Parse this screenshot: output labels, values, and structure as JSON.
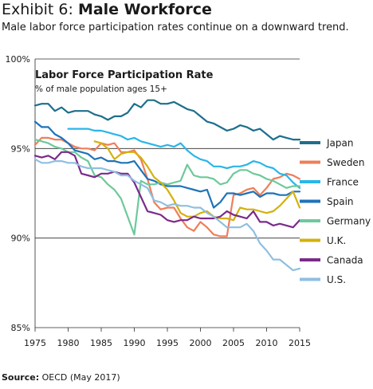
{
  "header": {
    "exhibit_label": "Exhibit 6:",
    "exhibit_title": "Male Workforce",
    "subtitle": "Male labor force participation rates continue on a downward trend."
  },
  "footer": {
    "source_label": "Source:",
    "source_text": "OECD (May 2017)"
  },
  "chart_data": {
    "type": "line",
    "title": "Labor Force Participation Rate",
    "subtitle": "% of male population ages 15+",
    "xlim": [
      1975,
      2015
    ],
    "ylim": [
      85,
      100
    ],
    "x_ticks": [
      1975,
      1980,
      1985,
      1990,
      1995,
      2000,
      2005,
      2010,
      2015
    ],
    "y_ticks": [
      {
        "value": 85,
        "label": "85%"
      },
      {
        "value": 90,
        "label": "90%"
      },
      {
        "value": 95,
        "label": "95%"
      },
      {
        "value": 100,
        "label": "100%"
      }
    ],
    "grid": "horizontal",
    "legend_position": "right",
    "series": [
      {
        "name": "Japan",
        "color": "#1d6f8c",
        "x": [
          1975,
          1976,
          1977,
          1978,
          1979,
          1980,
          1981,
          1982,
          1983,
          1984,
          1985,
          1986,
          1987,
          1988,
          1989,
          1990,
          1991,
          1992,
          1993,
          1994,
          1995,
          1996,
          1997,
          1998,
          1999,
          2000,
          2001,
          2002,
          2003,
          2004,
          2005,
          2006,
          2007,
          2008,
          2009,
          2010,
          2011,
          2012,
          2013,
          2014,
          2015
        ],
        "y": [
          97.4,
          97.5,
          97.5,
          97.1,
          97.3,
          97.0,
          97.1,
          97.1,
          97.1,
          96.9,
          96.8,
          96.6,
          96.8,
          96.8,
          97.0,
          97.5,
          97.3,
          97.7,
          97.7,
          97.5,
          97.5,
          97.6,
          97.4,
          97.2,
          97.1,
          96.8,
          96.5,
          96.4,
          96.2,
          96.0,
          96.1,
          96.3,
          96.2,
          96.0,
          96.1,
          95.8,
          95.5,
          95.7,
          95.6,
          95.5,
          95.5
        ]
      },
      {
        "name": "Sweden",
        "color": "#ef7e5a",
        "x": [
          1975,
          1976,
          1977,
          1978,
          1979,
          1980,
          1981,
          1982,
          1983,
          1984,
          1985,
          1986,
          1987,
          1988,
          1989,
          1990,
          1991,
          1992,
          1993,
          1994,
          1995,
          1996,
          1997,
          1998,
          1999,
          2000,
          2001,
          2002,
          2003,
          2004,
          2005,
          2006,
          2007,
          2008,
          2009,
          2010,
          2011,
          2012,
          2013,
          2014,
          2015
        ],
        "y": [
          95.2,
          95.6,
          95.6,
          95.5,
          95.5,
          95.3,
          95.1,
          95.0,
          95.0,
          94.9,
          95.3,
          95.2,
          95.3,
          94.8,
          94.8,
          94.9,
          94.4,
          93.3,
          92.0,
          91.6,
          91.7,
          91.7,
          91.1,
          90.6,
          90.4,
          90.9,
          90.6,
          90.2,
          90.1,
          90.1,
          92.4,
          92.5,
          92.7,
          92.8,
          92.4,
          92.8,
          93.3,
          93.4,
          93.6,
          93.5,
          93.3
        ]
      },
      {
        "name": "France",
        "color": "#29b6e8",
        "x": [
          1980,
          1981,
          1982,
          1983,
          1984,
          1985,
          1986,
          1987,
          1988,
          1989,
          1990,
          1991,
          1992,
          1993,
          1994,
          1995,
          1996,
          1997,
          1998,
          1999,
          2000,
          2001,
          2002,
          2003,
          2004,
          2005,
          2006,
          2007,
          2008,
          2009,
          2010,
          2011,
          2012,
          2013,
          2014,
          2015
        ],
        "y": [
          96.1,
          96.1,
          96.1,
          96.1,
          96.0,
          96.0,
          95.9,
          95.8,
          95.7,
          95.5,
          95.6,
          95.4,
          95.3,
          95.2,
          95.1,
          95.2,
          95.1,
          95.3,
          94.9,
          94.6,
          94.4,
          94.3,
          94.0,
          94.0,
          93.9,
          94.0,
          94.0,
          94.1,
          94.3,
          94.2,
          94.0,
          93.9,
          93.6,
          93.5,
          93.1,
          92.8
        ]
      },
      {
        "name": "Spain",
        "color": "#1f72b8",
        "x": [
          1975,
          1976,
          1977,
          1978,
          1979,
          1980,
          1981,
          1982,
          1983,
          1984,
          1985,
          1986,
          1987,
          1988,
          1989,
          1990,
          1991,
          1992,
          1993,
          1994,
          1995,
          1996,
          1997,
          1998,
          1999,
          2000,
          2001,
          2002,
          2003,
          2004,
          2005,
          2006,
          2007,
          2008,
          2009,
          2010,
          2011,
          2012,
          2013,
          2014,
          2015
        ],
        "y": [
          96.5,
          96.2,
          96.2,
          95.8,
          95.6,
          95.3,
          94.9,
          94.8,
          94.7,
          94.4,
          94.5,
          94.3,
          94.3,
          94.2,
          94.2,
          94.3,
          93.8,
          93.3,
          93.2,
          93.0,
          92.9,
          92.9,
          92.9,
          92.8,
          92.7,
          92.6,
          92.7,
          91.7,
          92.0,
          92.5,
          92.5,
          92.4,
          92.5,
          92.6,
          92.3,
          92.5,
          92.5,
          92.4,
          92.4,
          92.6,
          92.6
        ]
      },
      {
        "name": "Germany",
        "color": "#6dc99a",
        "x": [
          1975,
          1976,
          1977,
          1978,
          1979,
          1980,
          1981,
          1982,
          1983,
          1984,
          1985,
          1986,
          1987,
          1988,
          1989,
          1990,
          1991,
          1992,
          1993,
          1994,
          1995,
          1996,
          1997,
          1998,
          1999,
          2000,
          2001,
          2002,
          2003,
          2004,
          2005,
          2006,
          2007,
          2008,
          2009,
          2010,
          2011,
          2012,
          2013,
          2014,
          2015
        ],
        "y": [
          95.5,
          95.4,
          95.3,
          95.1,
          95.0,
          94.8,
          94.8,
          94.5,
          94.3,
          93.5,
          93.4,
          93.0,
          92.7,
          92.2,
          91.2,
          90.2,
          93.2,
          93.0,
          93.0,
          93.1,
          93.0,
          93.1,
          93.2,
          94.1,
          93.5,
          93.4,
          93.4,
          93.3,
          93.0,
          93.1,
          93.6,
          93.8,
          93.8,
          93.6,
          93.5,
          93.3,
          93.2,
          93.0,
          92.8,
          92.9,
          92.9
        ]
      },
      {
        "name": "U.K.",
        "color": "#d4b10c",
        "x": [
          1984,
          1985,
          1986,
          1987,
          1988,
          1989,
          1990,
          1991,
          1992,
          1993,
          1994,
          1995,
          1996,
          1997,
          1998,
          1999,
          2000,
          2001,
          2002,
          2003,
          2004,
          2005,
          2006,
          2007,
          2008,
          2009,
          2010,
          2011,
          2012,
          2013,
          2014,
          2015
        ],
        "y": [
          95.4,
          95.3,
          95.0,
          94.4,
          94.7,
          94.8,
          94.8,
          94.5,
          94.0,
          93.4,
          93.1,
          92.7,
          92.1,
          91.4,
          91.2,
          91.2,
          91.4,
          91.5,
          91.2,
          91.1,
          91.1,
          91.0,
          91.7,
          91.6,
          91.6,
          91.5,
          91.4,
          91.5,
          91.8,
          92.2,
          92.6,
          91.7
        ]
      },
      {
        "name": "Canada",
        "color": "#7b2a8a",
        "x": [
          1975,
          1976,
          1977,
          1978,
          1979,
          1980,
          1981,
          1982,
          1983,
          1984,
          1985,
          1986,
          1987,
          1988,
          1989,
          1990,
          1991,
          1992,
          1993,
          1994,
          1995,
          1996,
          1997,
          1998,
          1999,
          2000,
          2001,
          2002,
          2003,
          2004,
          2005,
          2006,
          2007,
          2008,
          2009,
          2010,
          2011,
          2012,
          2013,
          2014,
          2015
        ],
        "y": [
          94.6,
          94.5,
          94.6,
          94.4,
          94.8,
          94.8,
          94.6,
          93.6,
          93.5,
          93.4,
          93.6,
          93.6,
          93.7,
          93.6,
          93.6,
          93.1,
          92.3,
          91.5,
          91.4,
          91.3,
          91.0,
          90.9,
          91.0,
          91.0,
          91.2,
          91.1,
          91.1,
          91.1,
          91.2,
          91.5,
          91.3,
          91.2,
          91.1,
          91.5,
          90.9,
          90.9,
          90.7,
          90.8,
          90.7,
          90.6,
          91.0
        ]
      },
      {
        "name": "U.S.",
        "color": "#8fbfe0",
        "x": [
          1975,
          1976,
          1977,
          1978,
          1979,
          1980,
          1981,
          1982,
          1983,
          1984,
          1985,
          1986,
          1987,
          1988,
          1989,
          1990,
          1991,
          1992,
          1993,
          1994,
          1995,
          1996,
          1997,
          1998,
          1999,
          2000,
          2001,
          2002,
          2003,
          2004,
          2005,
          2006,
          2007,
          2008,
          2009,
          2010,
          2011,
          2012,
          2013,
          2014,
          2015
        ],
        "y": [
          94.4,
          94.2,
          94.2,
          94.3,
          94.3,
          94.2,
          94.2,
          94.0,
          93.9,
          93.9,
          93.9,
          93.8,
          93.7,
          93.5,
          93.5,
          93.2,
          93.0,
          92.8,
          92.1,
          92.0,
          91.8,
          91.9,
          91.8,
          91.8,
          91.7,
          91.7,
          91.4,
          91.2,
          90.9,
          90.6,
          90.6,
          90.6,
          90.8,
          90.4,
          89.7,
          89.3,
          88.8,
          88.8,
          88.5,
          88.2,
          88.3
        ]
      }
    ]
  }
}
